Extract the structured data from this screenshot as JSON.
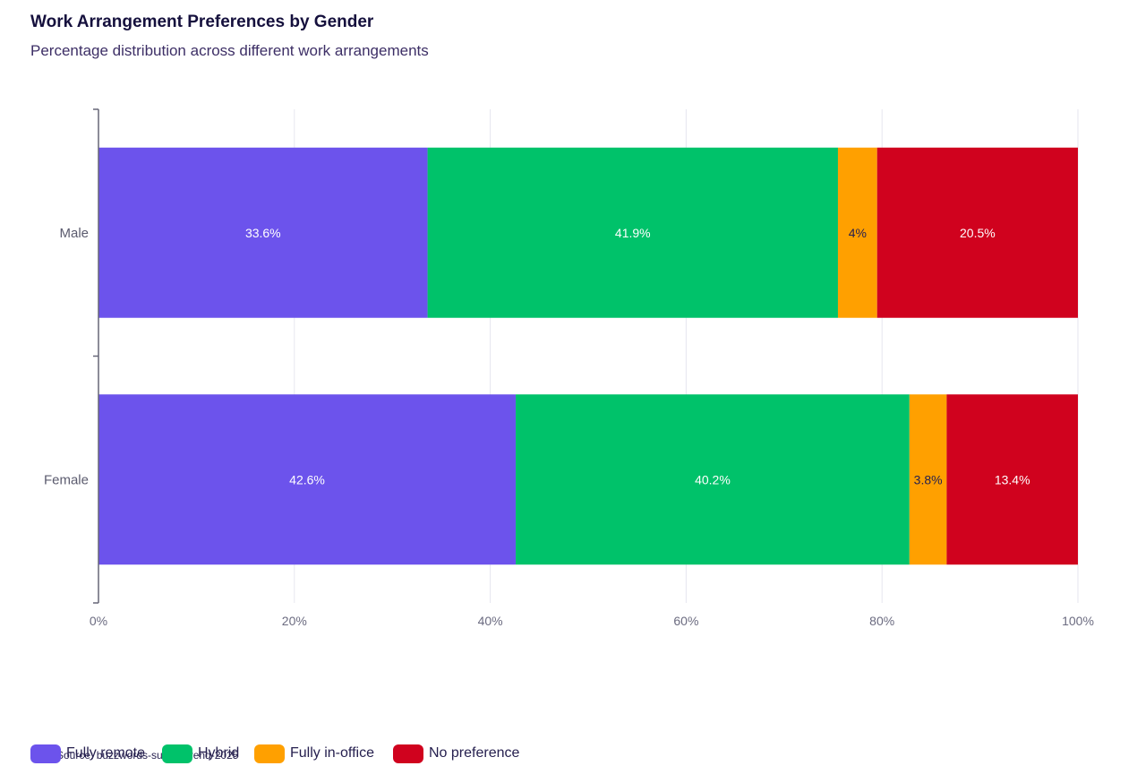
{
  "chart_data": {
    "type": "bar",
    "orientation": "horizontal",
    "stacked": true,
    "title": "Work Arrangement Preferences by Gender",
    "subtitle": "Percentage distribution across different work arrangements",
    "categories": [
      "Male",
      "Female"
    ],
    "series": [
      {
        "name": "Fully remote",
        "color": "#6c53ec",
        "values": [
          33.6,
          42.6
        ],
        "labels": [
          "33.6%",
          "42.6%"
        ],
        "label_color": "#ffffff"
      },
      {
        "name": "Hybrid",
        "color": "#00c26a",
        "values": [
          41.9,
          40.2
        ],
        "labels": [
          "41.9%",
          "40.2%"
        ],
        "label_color": "#ffffff"
      },
      {
        "name": "Fully in-office",
        "color": "#ffa000",
        "values": [
          4,
          3.8
        ],
        "labels": [
          "4%",
          "3.8%"
        ],
        "label_color": "#26204f"
      },
      {
        "name": "No preference",
        "color": "#d0021e",
        "values": [
          20.5,
          13.4
        ],
        "labels": [
          "20.5%",
          "13.4%"
        ],
        "label_color": "#ffffff"
      }
    ],
    "xlim": [
      0,
      100
    ],
    "xticks": [
      0,
      20,
      40,
      60,
      80,
      100
    ],
    "xtick_labels": [
      "0%",
      "20%",
      "40%",
      "60%",
      "80%",
      "100%"
    ],
    "grid": true,
    "legend": "bottom-left",
    "source_note": "Source: buzzwords-survey-trend-2025"
  }
}
